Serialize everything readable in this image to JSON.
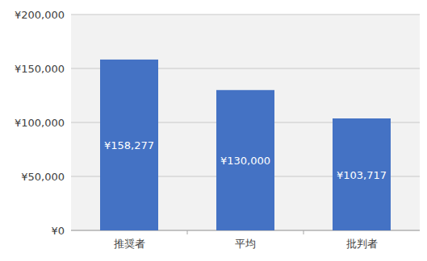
{
  "chart_data": {
    "type": "bar",
    "categories": [
      "推奨者",
      "平均",
      "批判者"
    ],
    "values": [
      158277,
      130000,
      103717
    ],
    "value_labels": [
      "¥158,277",
      "¥130,000",
      "¥103,717"
    ],
    "color": "#4472c4",
    "ylim": [
      0,
      200000
    ],
    "yticks": [
      {
        "value": 0,
        "label": "¥0"
      },
      {
        "value": 50000,
        "label": "¥50,000"
      },
      {
        "value": 100000,
        "label": "¥100,000"
      },
      {
        "value": 150000,
        "label": "¥150,000"
      },
      {
        "value": 200000,
        "label": "¥200,000"
      }
    ],
    "grid": true,
    "data_labels": true
  }
}
